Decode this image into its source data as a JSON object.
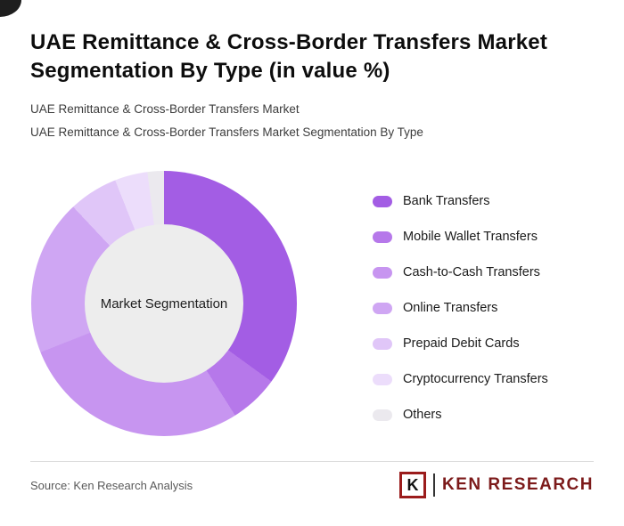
{
  "header": {
    "title": "UAE Remittance & Cross-Border Transfers Market Segmentation By Type (in value %)",
    "subtitle1": "UAE Remittance & Cross-Border Transfers Market",
    "subtitle2": "UAE Remittance & Cross-Border Transfers Market Segmentation By Type"
  },
  "chart_data": {
    "type": "pie",
    "donut": true,
    "title": "UAE Remittance & Cross-Border Transfers Market Segmentation By Type (in value %)",
    "center_label": "Market Segmentation",
    "start_angle_deg": 0,
    "direction": "clockwise",
    "legend_position": "right",
    "hole_color": "#ededed",
    "segments": [
      {
        "label": "Bank Transfers",
        "value": 35,
        "color": "#a35de4"
      },
      {
        "label": "Mobile Wallet Transfers",
        "value": 6,
        "color": "#b678ea"
      },
      {
        "label": "Cash-to-Cash Transfers",
        "value": 28,
        "color": "#c795f0"
      },
      {
        "label": "Online Transfers",
        "value": 19,
        "color": "#cfa6f3"
      },
      {
        "label": "Prepaid Debit Cards",
        "value": 6,
        "color": "#e0c6f8"
      },
      {
        "label": "Cryptocurrency Transfers",
        "value": 4,
        "color": "#ecddfb"
      },
      {
        "label": "Others",
        "value": 2,
        "color": "#ebe9ee"
      }
    ]
  },
  "footer": {
    "source": "Source: Ken Research Analysis",
    "logo_k": "K",
    "logo_text": "KEN RESEARCH"
  }
}
